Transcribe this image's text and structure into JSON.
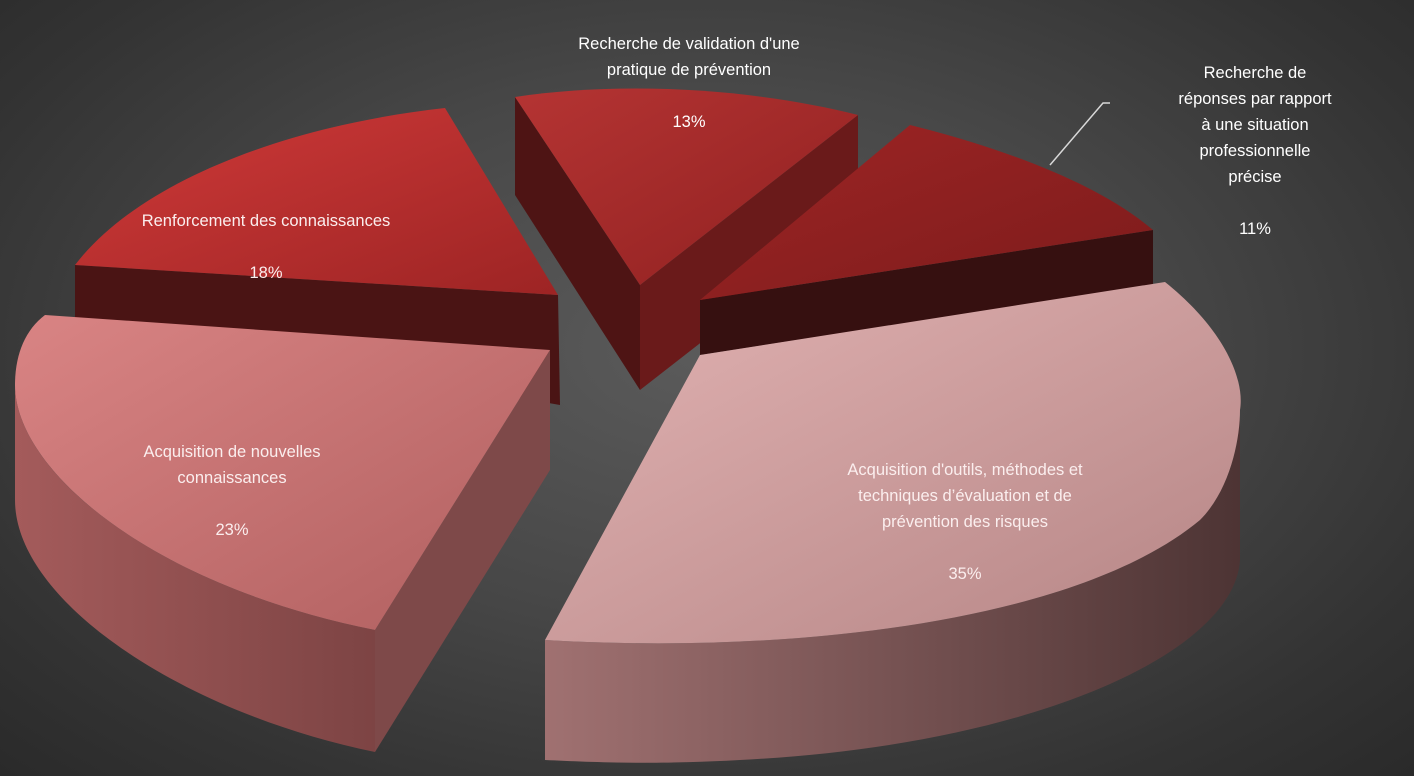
{
  "chart_data": {
    "type": "pie",
    "style": "3d-exploded",
    "slices": [
      {
        "label": "Acquisition d'outils, méthodes et\ntechniques d’évaluation et de\nprévention des risques",
        "percent_label": "35%",
        "value": 35,
        "color": "#c98e8e"
      },
      {
        "label": "Acquisition de nouvelles\nconnaissances",
        "percent_label": "23%",
        "value": 23,
        "color": "#c66a6a"
      },
      {
        "label": "Renforcement des connaissances",
        "percent_label": "18%",
        "value": 18,
        "color": "#b5302f"
      },
      {
        "label": "Recherche de validation d'une\npratique de prévention",
        "percent_label": "13%",
        "value": 13,
        "color": "#a42a29"
      },
      {
        "label": "Recherche de réponses par rapport\nà une situation professionnelle\nprécise",
        "percent_label": "11%",
        "value": 11,
        "color": "#8e1f1f"
      }
    ],
    "legend": "none",
    "data_labels": "outside-and-inside"
  }
}
